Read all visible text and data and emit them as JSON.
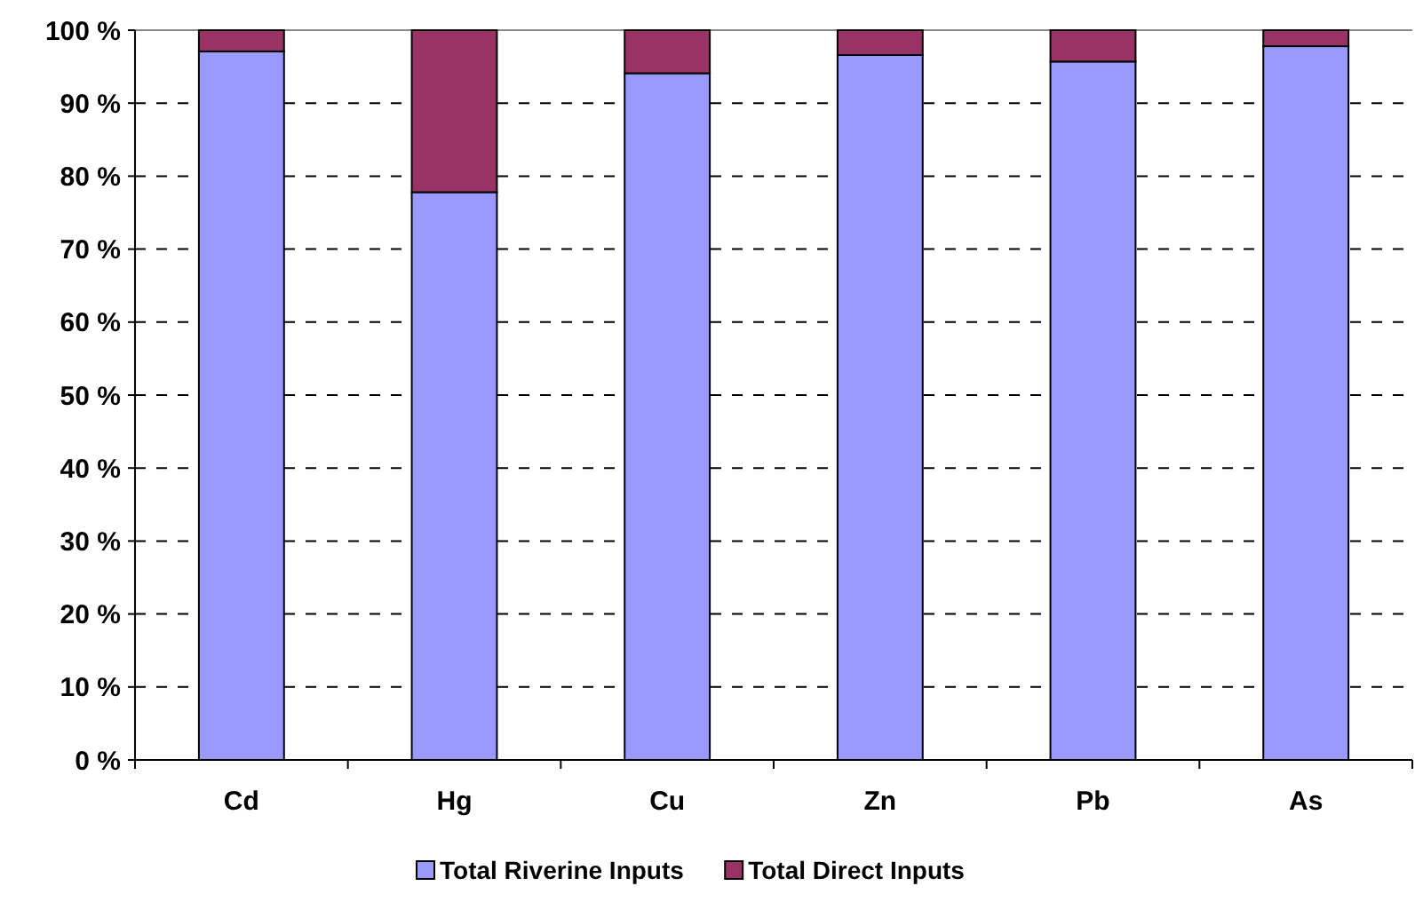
{
  "chart_data": {
    "type": "bar",
    "stacked": true,
    "categories": [
      "Cd",
      "Hg",
      "Cu",
      "Zn",
      "Pb",
      "As"
    ],
    "series": [
      {
        "name": "Total Riverine Inputs",
        "color": "#9999ff",
        "values": [
          97.1,
          77.8,
          94.1,
          96.6,
          95.7,
          97.8
        ]
      },
      {
        "name": "Total Direct Inputs",
        "color": "#993366",
        "values": [
          2.9,
          22.2,
          5.9,
          3.4,
          4.3,
          2.2
        ]
      }
    ],
    "ylim": [
      0,
      100
    ],
    "yticks": [
      {
        "value": 0,
        "label": "0 %"
      },
      {
        "value": 10,
        "label": "10 %"
      },
      {
        "value": 20,
        "label": "20 %"
      },
      {
        "value": 30,
        "label": "30 %"
      },
      {
        "value": 40,
        "label": "40 %"
      },
      {
        "value": 50,
        "label": "50 %"
      },
      {
        "value": 60,
        "label": "60 %"
      },
      {
        "value": 70,
        "label": "70 %"
      },
      {
        "value": 80,
        "label": "80 %"
      },
      {
        "value": 90,
        "label": "90 %"
      },
      {
        "value": 100,
        "label": "100 %"
      }
    ],
    "grid": "y",
    "legend": "bottom"
  }
}
